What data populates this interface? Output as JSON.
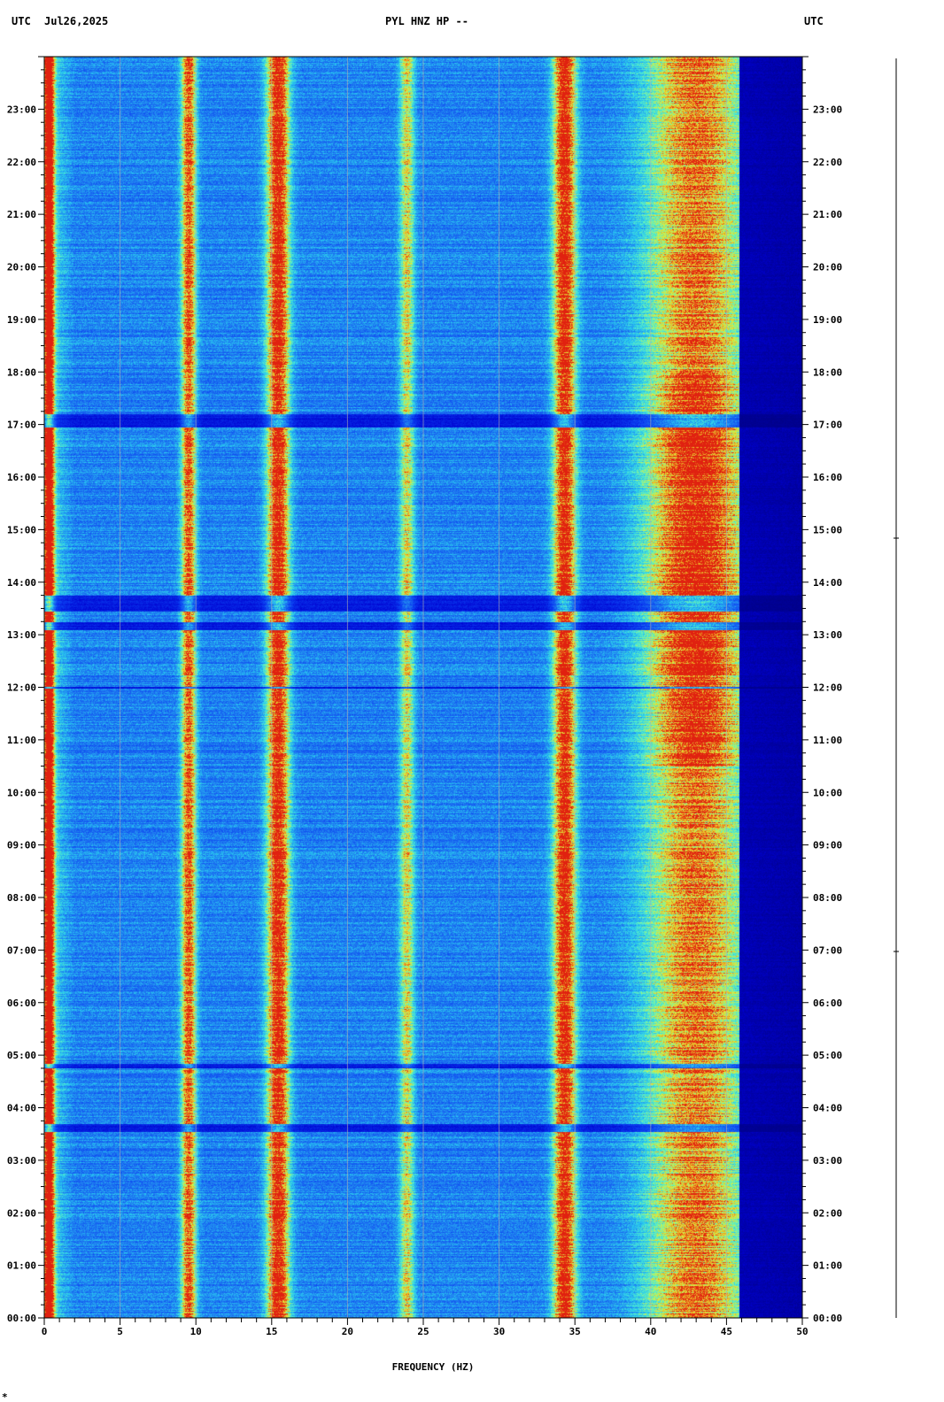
{
  "header": {
    "left_tz": "UTC",
    "date": "Jul26,2025",
    "station": "PYL HNZ HP --",
    "right_tz": "UTC"
  },
  "footnote": "*",
  "chart_data": {
    "type": "heatmap",
    "title": "PYL HNZ HP --",
    "xlabel": "FREQUENCY (HZ)",
    "ylabel": "",
    "xlim": [
      0,
      50
    ],
    "ylim_hours": [
      0,
      24
    ],
    "x_ticks": [
      "0",
      "5",
      "10",
      "15",
      "20",
      "25",
      "30",
      "35",
      "40",
      "45",
      "50"
    ],
    "y_ticks": [
      "00:00",
      "01:00",
      "02:00",
      "03:00",
      "04:00",
      "05:00",
      "06:00",
      "07:00",
      "08:00",
      "09:00",
      "10:00",
      "11:00",
      "12:00",
      "13:00",
      "14:00",
      "15:00",
      "16:00",
      "17:00",
      "18:00",
      "19:00",
      "20:00",
      "21:00",
      "22:00",
      "23:00"
    ],
    "grid": true,
    "colormap": [
      "#00007a",
      "#0000d0",
      "#0a3cf0",
      "#1e78f0",
      "#28c8f0",
      "#60f0c0",
      "#d8f040",
      "#f0a020",
      "#e02010"
    ],
    "spectral_bands_hz": [
      {
        "name": "band-0.5",
        "center": 0.3,
        "width": 0.4,
        "intensity": 0.95
      },
      {
        "name": "band-9.5",
        "center": 9.5,
        "width": 0.6,
        "intensity": 0.7
      },
      {
        "name": "band-15.5",
        "center": 15.4,
        "width": 0.9,
        "intensity": 0.85
      },
      {
        "name": "band-24",
        "center": 23.9,
        "width": 0.6,
        "intensity": 0.45
      },
      {
        "name": "band-34.5",
        "center": 34.3,
        "width": 0.9,
        "intensity": 0.85
      },
      {
        "name": "band-43",
        "center": 43.0,
        "width": 4.0,
        "intensity": 0.7
      }
    ],
    "rolloff_hz": 45.8
  }
}
